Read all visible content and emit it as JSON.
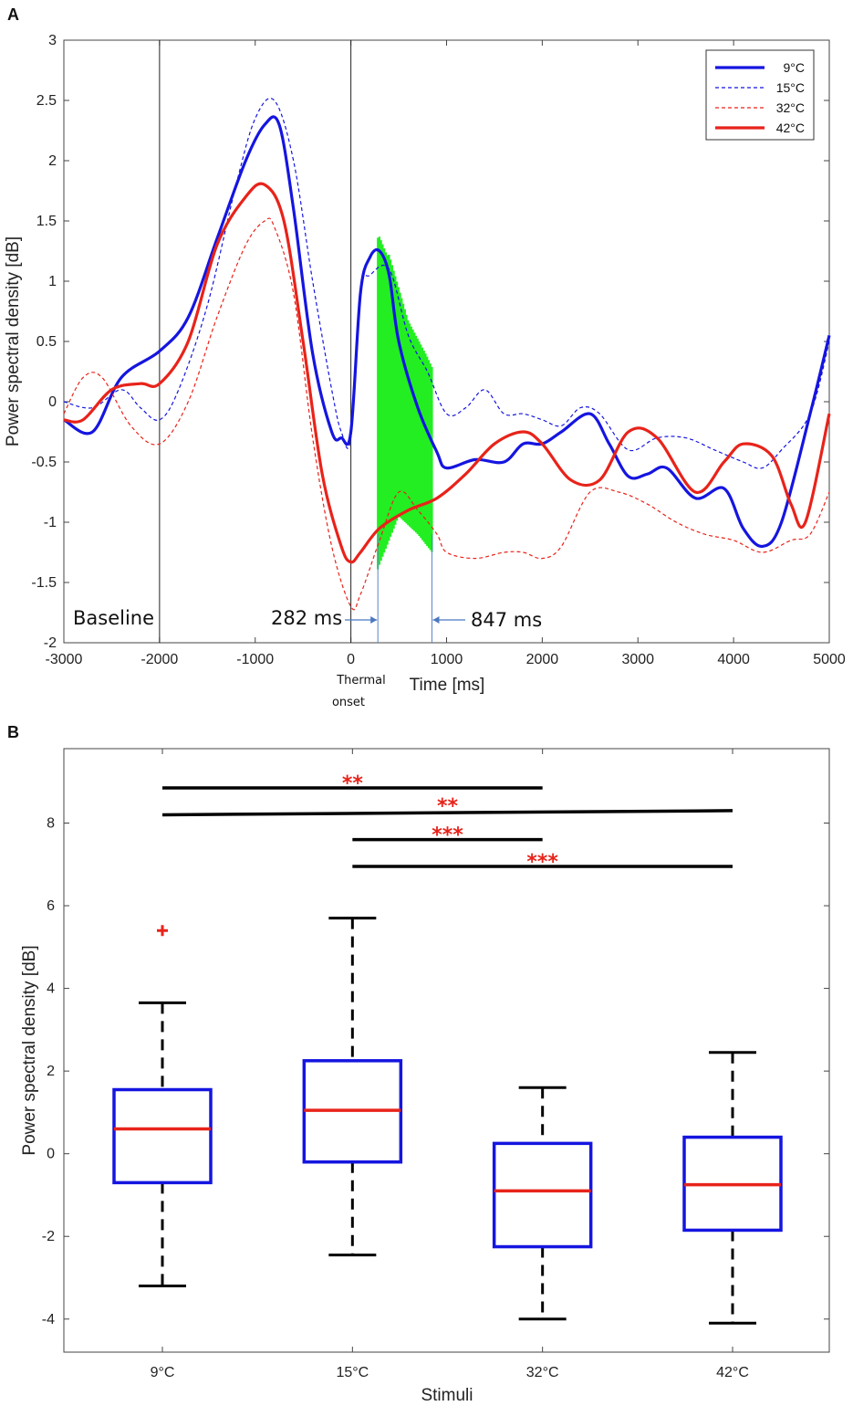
{
  "chart_data": [
    {
      "panel": "A",
      "type": "line",
      "xlabel": "Time [ms]",
      "ylabel": "Power spectral density [dB]",
      "xlim": [
        -3000,
        5000
      ],
      "ylim": [
        -2,
        3
      ],
      "xticks": [
        -3000,
        -2000,
        -1000,
        0,
        1000,
        2000,
        3000,
        4000,
        5000
      ],
      "yticks": [
        -2,
        -1.5,
        -1,
        -0.5,
        0,
        0.5,
        1,
        1.5,
        2,
        2.5,
        3
      ],
      "xtick_labels": [
        "-3000",
        "-2000",
        "-1000",
        "0",
        "1000",
        "2000",
        "3000",
        "4000",
        "5000"
      ],
      "ytick_labels": [
        "-2",
        "-1.5",
        "-1",
        "-0.5",
        "0",
        "0.5",
        "1",
        "1.5",
        "2",
        "2.5",
        "3"
      ],
      "vlines": [
        -2000,
        0
      ],
      "shaded_window": [
        282,
        847
      ],
      "annotations": {
        "baseline": "Baseline",
        "start": "282 ms",
        "end": "847 ms",
        "onset_line1": "Thermal",
        "onset_line2": "onset"
      },
      "legend_position": "top-right",
      "series": [
        {
          "name": "9°C",
          "color": "#1515e0",
          "style": "solid",
          "x": [
            -3000,
            -2700,
            -2400,
            -2000,
            -1700,
            -1400,
            -1100,
            -900,
            -750,
            -600,
            -400,
            -200,
            -100,
            0,
            100,
            200,
            300,
            400,
            500,
            700,
            900,
            1000,
            1300,
            1600,
            1800,
            2000,
            2200,
            2500,
            2700,
            2900,
            3100,
            3300,
            3600,
            3900,
            4100,
            4300,
            4500,
            4800,
            5000
          ],
          "y": [
            -0.15,
            -0.25,
            0.2,
            0.42,
            0.7,
            1.35,
            2.0,
            2.3,
            2.3,
            1.6,
            0.4,
            -0.25,
            -0.3,
            -0.25,
            0.9,
            1.2,
            1.25,
            1.05,
            0.5,
            -0.05,
            -0.42,
            -0.55,
            -0.48,
            -0.5,
            -0.35,
            -0.35,
            -0.25,
            -0.1,
            -0.35,
            -0.62,
            -0.6,
            -0.55,
            -0.8,
            -0.72,
            -1.05,
            -1.2,
            -1.0,
            -0.1,
            0.55
          ]
        },
        {
          "name": "15°C",
          "color": "#1515e0",
          "style": "dashed",
          "x": [
            -3000,
            -2700,
            -2400,
            -2200,
            -2000,
            -1800,
            -1500,
            -1200,
            -1000,
            -800,
            -600,
            -400,
            -200,
            -100,
            0,
            100,
            200,
            400,
            600,
            800,
            1000,
            1200,
            1400,
            1600,
            1800,
            2000,
            2200,
            2400,
            2600,
            2900,
            3200,
            3500,
            3800,
            4100,
            4300,
            4500,
            4800,
            5000
          ],
          "y": [
            0.0,
            -0.05,
            0.1,
            -0.05,
            -0.15,
            0.1,
            0.8,
            1.8,
            2.35,
            2.5,
            2.0,
            1.0,
            0.1,
            -0.25,
            -0.3,
            0.9,
            1.05,
            1.1,
            0.55,
            0.25,
            -0.1,
            -0.05,
            0.1,
            -0.1,
            -0.1,
            -0.15,
            -0.2,
            -0.05,
            -0.1,
            -0.4,
            -0.3,
            -0.3,
            -0.4,
            -0.5,
            -0.55,
            -0.4,
            -0.1,
            0.5
          ]
        },
        {
          "name": "32°C",
          "color": "#e8231a",
          "style": "dashed",
          "x": [
            -3000,
            -2800,
            -2600,
            -2300,
            -2000,
            -1700,
            -1400,
            -1100,
            -900,
            -800,
            -600,
            -400,
            -200,
            0,
            100,
            300,
            500,
            700,
            900,
            1000,
            1300,
            1600,
            1800,
            2000,
            2200,
            2500,
            2800,
            3100,
            3400,
            3700,
            4000,
            4300,
            4600,
            4800,
            5000
          ],
          "y": [
            -0.1,
            0.2,
            0.2,
            -0.2,
            -0.35,
            0.0,
            0.7,
            1.3,
            1.5,
            1.45,
            0.9,
            -0.3,
            -1.2,
            -1.7,
            -1.6,
            -1.15,
            -0.75,
            -0.9,
            -1.1,
            -1.25,
            -1.3,
            -1.25,
            -1.25,
            -1.3,
            -1.2,
            -0.75,
            -0.75,
            -0.85,
            -1.0,
            -1.1,
            -1.15,
            -1.25,
            -1.15,
            -1.1,
            -0.75
          ]
        },
        {
          "name": "42°C",
          "color": "#e8231a",
          "style": "solid",
          "x": [
            -3000,
            -2800,
            -2500,
            -2200,
            -2000,
            -1700,
            -1400,
            -1100,
            -900,
            -700,
            -500,
            -300,
            -100,
            0,
            100,
            300,
            600,
            900,
            1200,
            1500,
            1800,
            2000,
            2300,
            2600,
            2900,
            3200,
            3600,
            3900,
            4100,
            4400,
            4600,
            4750,
            5000
          ],
          "y": [
            -0.15,
            -0.15,
            0.1,
            0.15,
            0.15,
            0.5,
            1.3,
            1.7,
            1.8,
            1.5,
            0.5,
            -0.6,
            -1.2,
            -1.33,
            -1.25,
            -1.05,
            -0.9,
            -0.8,
            -0.6,
            -0.35,
            -0.25,
            -0.35,
            -0.65,
            -0.65,
            -0.25,
            -0.3,
            -0.75,
            -0.5,
            -0.35,
            -0.45,
            -0.85,
            -1.0,
            -0.1
          ]
        }
      ]
    },
    {
      "panel": "B",
      "type": "box",
      "xlabel": "Stimuli",
      "ylabel": "Power spectral density [dB]",
      "ylim": [
        -4.8,
        9.8
      ],
      "yticks": [
        -4,
        -2,
        0,
        2,
        4,
        6,
        8
      ],
      "ytick_labels": [
        "-4",
        "-2",
        "0",
        "2",
        "4",
        "6",
        "8"
      ],
      "categories": [
        "9°C",
        "15°C",
        "32°C",
        "42°C"
      ],
      "boxes": [
        {
          "category": "9°C",
          "whisker_low": -3.2,
          "q1": -0.7,
          "median": 0.6,
          "q3": 1.55,
          "whisker_high": 3.65,
          "outliers": [
            5.4
          ]
        },
        {
          "category": "15°C",
          "whisker_low": -2.45,
          "q1": -0.2,
          "median": 1.05,
          "q3": 2.25,
          "whisker_high": 5.7,
          "outliers": []
        },
        {
          "category": "32°C",
          "whisker_low": -4.0,
          "q1": -2.25,
          "median": -0.9,
          "q3": 0.25,
          "whisker_high": 1.6,
          "outliers": []
        },
        {
          "category": "42°C",
          "whisker_low": -4.1,
          "q1": -1.85,
          "median": -0.75,
          "q3": 0.4,
          "whisker_high": 2.45,
          "outliers": []
        }
      ],
      "significance": [
        {
          "from": "9°C",
          "to": "32°C",
          "y": 8.85,
          "y_end": 8.85,
          "label": "**"
        },
        {
          "from": "9°C",
          "to": "42°C",
          "y": 8.2,
          "y_end": 8.3,
          "label": "**"
        },
        {
          "from": "15°C",
          "to": "32°C",
          "y": 7.6,
          "y_end": 7.6,
          "label": "***"
        },
        {
          "from": "15°C",
          "to": "42°C",
          "y": 6.95,
          "y_end": 6.95,
          "label": "***"
        }
      ],
      "box_color": "#1515e0",
      "median_color": "#e8231a",
      "outlier_color": "#e8231a"
    }
  ],
  "labels": {
    "panel_a": "A",
    "panel_b": "B"
  }
}
